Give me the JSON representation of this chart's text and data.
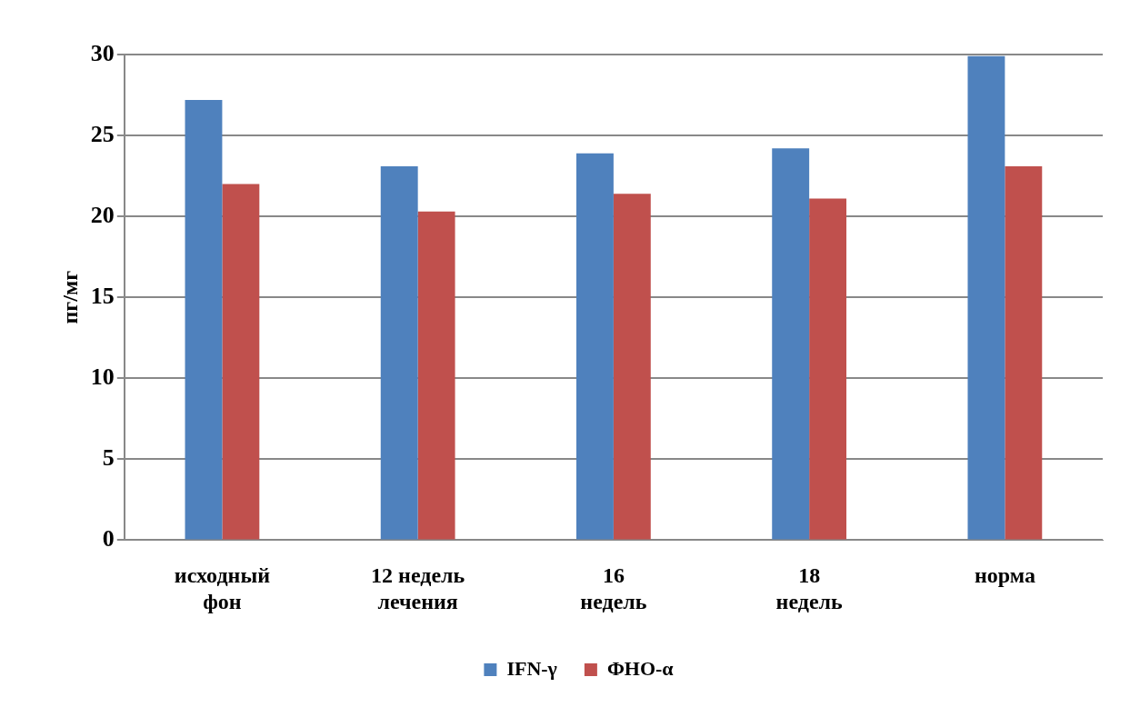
{
  "chart_data": {
    "type": "bar",
    "ylabel": "пг/мг",
    "categories": [
      "исходный фон",
      "12 недель лечения",
      "16 недель",
      "18 недель",
      "норма"
    ],
    "series": [
      {
        "name": "IFN-γ",
        "color": "#4f81bd",
        "values": [
          27.2,
          23.1,
          23.9,
          24.2,
          29.9
        ]
      },
      {
        "name": "ФНО-α",
        "color": "#c0504d",
        "values": [
          22.0,
          20.3,
          21.4,
          21.1,
          23.1
        ]
      }
    ],
    "ylim": [
      0,
      30
    ],
    "yticks": [
      0,
      5,
      10,
      15,
      20,
      25,
      30
    ],
    "grid": "y",
    "legend": "bottom"
  }
}
